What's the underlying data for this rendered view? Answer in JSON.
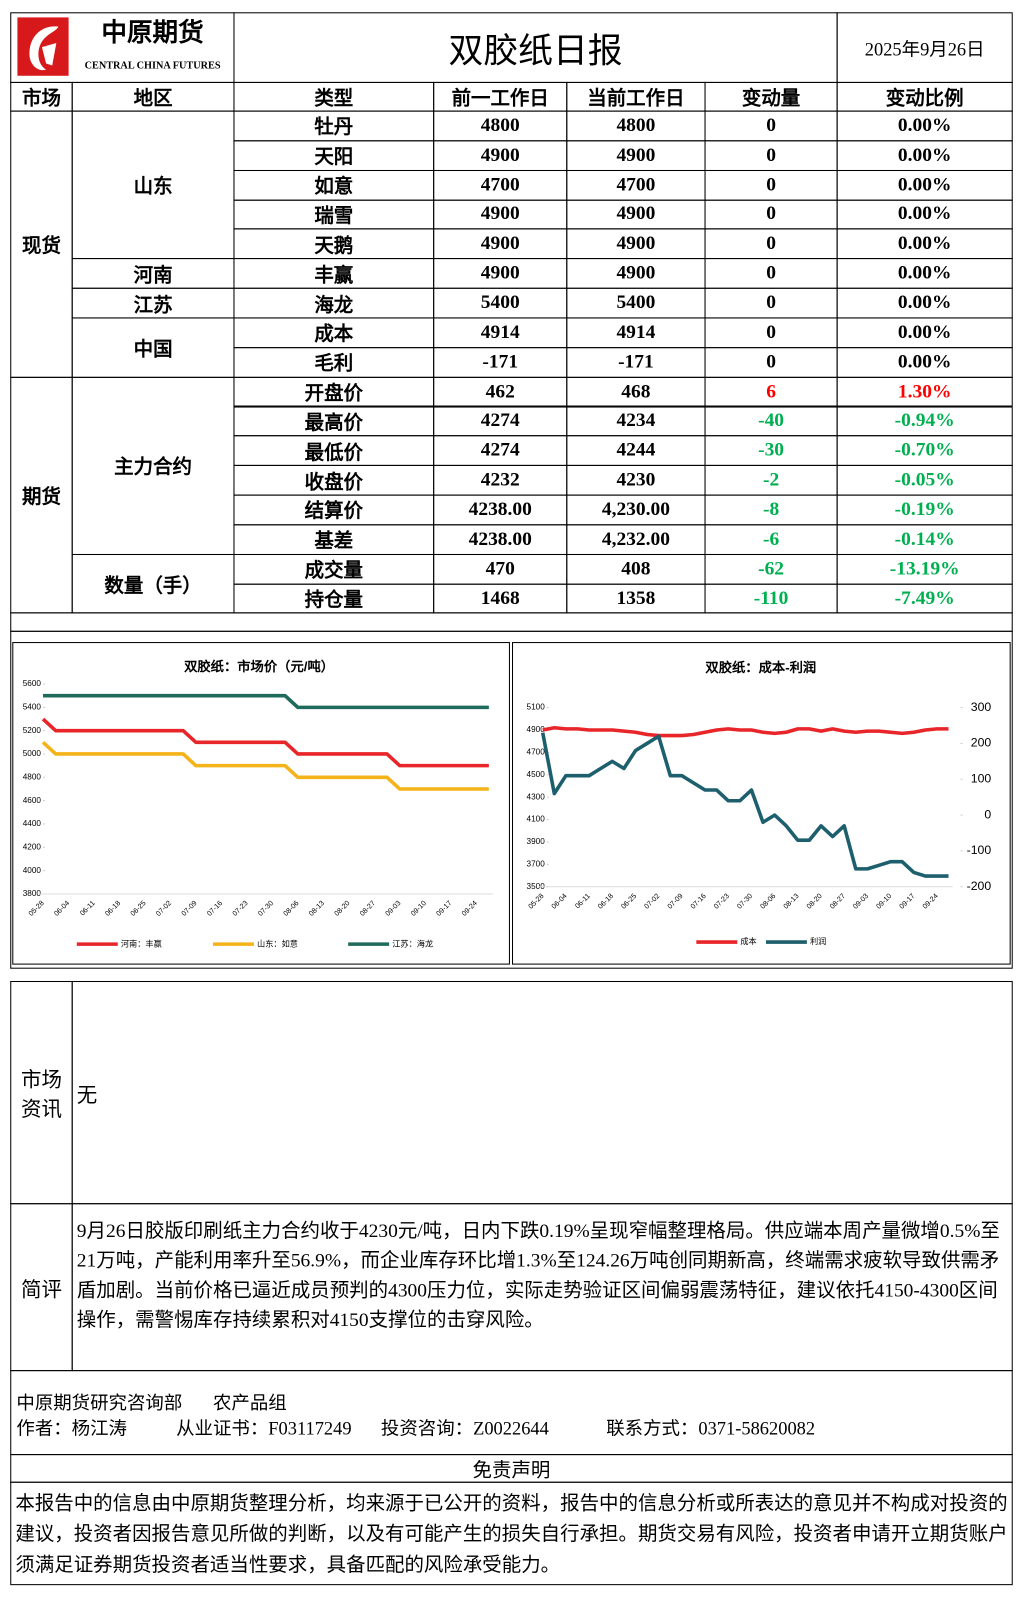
{
  "header": {
    "logo_cn": "中原期货",
    "logo_en": "CENTRAL CHINA FUTURES",
    "title": "双胶纸日报",
    "date": "2025年9月26日"
  },
  "table": {
    "columns": [
      "市场",
      "地区",
      "类型",
      "前一工作日",
      "当前工作日",
      "变动量",
      "变动比例"
    ],
    "groups": [
      {
        "market": "现货",
        "regions": [
          {
            "name": "山东",
            "rows": [
              [
                "牡丹",
                "4800",
                "4800",
                "0",
                "0.00%"
              ],
              [
                "天阳",
                "4900",
                "4900",
                "0",
                "0.00%"
              ],
              [
                "如意",
                "4700",
                "4700",
                "0",
                "0.00%"
              ],
              [
                "瑞雪",
                "4900",
                "4900",
                "0",
                "0.00%"
              ],
              [
                "天鹅",
                "4900",
                "4900",
                "0",
                "0.00%"
              ]
            ]
          },
          {
            "name": "河南",
            "rows": [
              [
                "丰赢",
                "4900",
                "4900",
                "0",
                "0.00%"
              ]
            ]
          },
          {
            "name": "江苏",
            "rows": [
              [
                "海龙",
                "5400",
                "5400",
                "0",
                "0.00%"
              ]
            ]
          },
          {
            "name": "中国",
            "rows": [
              [
                "成本",
                "4914",
                "4914",
                "0",
                "0.00%"
              ],
              [
                "毛利",
                "-171",
                "-171",
                "0",
                "0.00%"
              ]
            ]
          }
        ]
      },
      {
        "market": "期货",
        "regions": [
          {
            "name": "主力合约",
            "rows": [
              [
                "开盘价",
                "462",
                "468",
                "6",
                "1.30%"
              ],
              [
                "最高价",
                "4274",
                "4234",
                "-40",
                "-0.94%"
              ],
              [
                "最低价",
                "4274",
                "4244",
                "-30",
                "-0.70%"
              ],
              [
                "收盘价",
                "4232",
                "4230",
                "-2",
                "-0.05%"
              ],
              [
                "结算价",
                "4238.00",
                "4,230.00",
                "-8",
                "-0.19%"
              ],
              [
                "基差",
                "4238.00",
                "4,232.00",
                "-6",
                "-0.14%"
              ]
            ]
          },
          {
            "name": "数量（手）",
            "rows": [
              [
                "成交量",
                "470",
                "408",
                "-62",
                "-13.19%"
              ],
              [
                "持仓量",
                "1468",
                "1358",
                "-110",
                "-7.49%"
              ]
            ]
          }
        ]
      }
    ]
  },
  "chart_data": [
    {
      "type": "line",
      "title": "双胶纸：市场价（元/吨）",
      "categories": [
        "05-28",
        null,
        "06-04",
        null,
        "06-11",
        null,
        "06-18",
        null,
        "06-25",
        null,
        "07-02",
        null,
        "07-09",
        null,
        "07-16",
        null,
        "07-23",
        null,
        "07-30",
        null,
        "08-06",
        null,
        "08-13",
        null,
        "08-20",
        null,
        "08-27",
        null,
        "09-03",
        null,
        "09-10",
        null,
        "09-17",
        null,
        "09-24",
        null
      ],
      "series": [
        {
          "name": "河南：丰赢",
          "color": "#e8262a",
          "values": [
            5300,
            5200,
            5200,
            5200,
            5200,
            5200,
            5200,
            5200,
            5200,
            5200,
            5200,
            5200,
            5100,
            5100,
            5100,
            5100,
            5100,
            5100,
            5100,
            5100,
            5000,
            5000,
            5000,
            5000,
            5000,
            5000,
            5000,
            5000,
            4900,
            4900,
            4900,
            4900,
            4900,
            4900,
            4900,
            4900
          ]
        },
        {
          "name": "山东：如意",
          "color": "#f5b31a",
          "values": [
            5100,
            5000,
            5000,
            5000,
            5000,
            5000,
            5000,
            5000,
            5000,
            5000,
            5000,
            5000,
            4900,
            4900,
            4900,
            4900,
            4900,
            4900,
            4900,
            4900,
            4800,
            4800,
            4800,
            4800,
            4800,
            4800,
            4800,
            4800,
            4700,
            4700,
            4700,
            4700,
            4700,
            4700,
            4700,
            4700
          ]
        },
        {
          "name": "江苏：海龙",
          "color": "#1e6b5c",
          "values": [
            5500,
            5500,
            5500,
            5500,
            5500,
            5500,
            5500,
            5500,
            5500,
            5500,
            5500,
            5500,
            5500,
            5500,
            5500,
            5500,
            5500,
            5500,
            5500,
            5500,
            5400,
            5400,
            5400,
            5400,
            5400,
            5400,
            5400,
            5400,
            5400,
            5400,
            5400,
            5400,
            5400,
            5400,
            5400,
            5400
          ]
        }
      ],
      "ylim": [
        3800,
        5600
      ],
      "yticks": [
        3800,
        4000,
        4200,
        4400,
        4600,
        4800,
        5000,
        5200,
        5400,
        5600
      ],
      "grid": false,
      "legend": "bottom"
    },
    {
      "type": "line",
      "title": "双胶纸：成本-利润",
      "categories": [
        "05-28",
        null,
        "06-04",
        null,
        "06-11",
        null,
        "06-18",
        null,
        "06-25",
        null,
        "07-02",
        null,
        "07-09",
        null,
        "07-16",
        null,
        "07-23",
        null,
        "07-30",
        null,
        "08-06",
        null,
        "08-13",
        null,
        "08-20",
        null,
        "08-27",
        null,
        "09-03",
        null,
        "09-10",
        null,
        "09-17",
        null,
        "09-24",
        null
      ],
      "series": [
        {
          "name": "成本",
          "color": "#e8262a",
          "values": [
            4900,
            4920,
            4910,
            4910,
            4900,
            4900,
            4900,
            4890,
            4880,
            4860,
            4850,
            4850,
            4850,
            4860,
            4880,
            4900,
            4910,
            4900,
            4900,
            4880,
            4870,
            4880,
            4910,
            4910,
            4890,
            4910,
            4890,
            4880,
            4890,
            4890,
            4880,
            4870,
            4880,
            4900,
            4910,
            4910
          ]
        },
        {
          "name": "利润",
          "color": "#1e5f6e",
          "axis": "y2",
          "values": [
            230,
            60,
            110,
            110,
            110,
            130,
            150,
            130,
            180,
            200,
            220,
            110,
            110,
            90,
            70,
            70,
            40,
            40,
            70,
            -20,
            0,
            -30,
            -70,
            -70,
            -30,
            -60,
            -30,
            -150,
            -150,
            -140,
            -130,
            -130,
            -160,
            -170,
            -170,
            -170
          ]
        }
      ],
      "ylim": [
        3500,
        5100
      ],
      "yticks": [
        3500,
        3700,
        3900,
        4100,
        4300,
        4500,
        4700,
        4900,
        5100
      ],
      "y2lim": [
        -200,
        300
      ],
      "y2ticks": [
        -200,
        -100,
        0,
        100,
        200,
        300
      ],
      "grid": false,
      "legend": "bottom"
    }
  ],
  "info": {
    "label": "市场资讯",
    "text": "无"
  },
  "comment": {
    "label": "简评",
    "text": "9月26日胶版印刷纸主力合约收于4230元/吨，日内下跌0.19%呈现窄幅整理格局。供应端本周产量微增0.5%至21万吨，产能利用率升至56.9%，而企业库存环比增1.3%至124.26万吨创同期新高，终端需求疲软导致供需矛盾加剧。当前价格已逼近成员预判的4300压力位，实际走势验证区间偏弱震荡特征，建议依托4150-4300区间操作，需警惕库存持续累积对4150支撑位的击穿风险。"
  },
  "footer": {
    "dept": "中原期货研究咨询部",
    "group": "农产品组",
    "author": "作者：杨江涛",
    "cert": "从业证书：F03117249",
    "advisory": "投资咨询：Z0022644",
    "contact": "联系方式：0371-58620082"
  },
  "disclaimer": {
    "title": "免责声明",
    "text": "本报告中的信息由中原期货整理分析，均来源于已公开的资料，报告中的信息分析或所表达的意见并不构成对投资的建议，投资者因报告意见所做的判断，以及有可能产生的损失自行承担。期货交易有风险，投资者申请开立期货账户须满足证券期货投资者适当性要求，具备匹配的风险承受能力。"
  }
}
